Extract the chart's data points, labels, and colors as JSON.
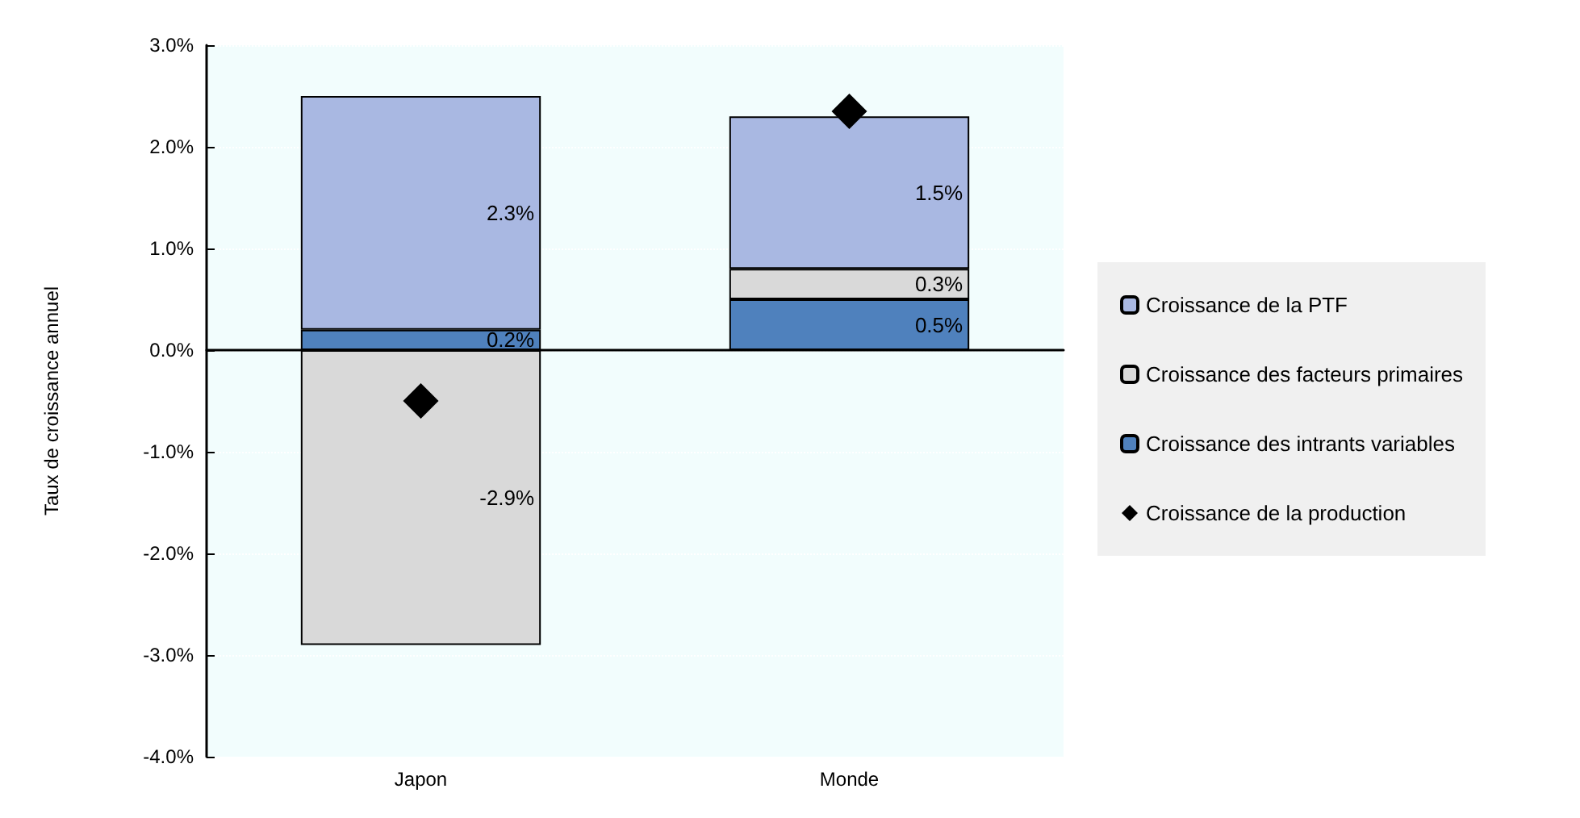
{
  "chart_data": {
    "type": "bar",
    "stacked": true,
    "ylabel": "Taux de croissance annuel",
    "categories": [
      "Japon",
      "Monde"
    ],
    "series": [
      {
        "name": "Croissance des intrants variables",
        "color": "#4f81bd",
        "values": [
          0.2,
          0.5
        ],
        "value_labels": [
          "0.2%",
          "0.5%"
        ]
      },
      {
        "name": "Croissance des facteurs primaires",
        "color": "#d9d9d9",
        "values": [
          -2.9,
          0.3
        ],
        "value_labels": [
          "-2.9%",
          "0.3%"
        ]
      },
      {
        "name": "Croissance de la PTF",
        "color": "#a9b8e2",
        "values": [
          2.3,
          1.5
        ],
        "value_labels": [
          "2.3%",
          "1.5%"
        ]
      },
      {
        "name": "Croissance de la production",
        "type": "scatter",
        "marker": "diamond",
        "color": "#000000",
        "x": [
          "Japon",
          "Monde"
        ],
        "values": [
          -0.5,
          2.35
        ]
      }
    ],
    "ylim": [
      -4,
      3
    ],
    "yticks": [
      {
        "value": -4,
        "label": "-4.0%"
      },
      {
        "value": -3,
        "label": "-3.0%"
      },
      {
        "value": -2,
        "label": "-2.0%"
      },
      {
        "value": -1,
        "label": "-1.0%"
      },
      {
        "value": 0,
        "label": "0.0%"
      },
      {
        "value": 1,
        "label": "1.0%"
      },
      {
        "value": 2,
        "label": "2.0%"
      },
      {
        "value": 3,
        "label": "3.0%"
      }
    ],
    "grid": "y",
    "legend": "right"
  }
}
